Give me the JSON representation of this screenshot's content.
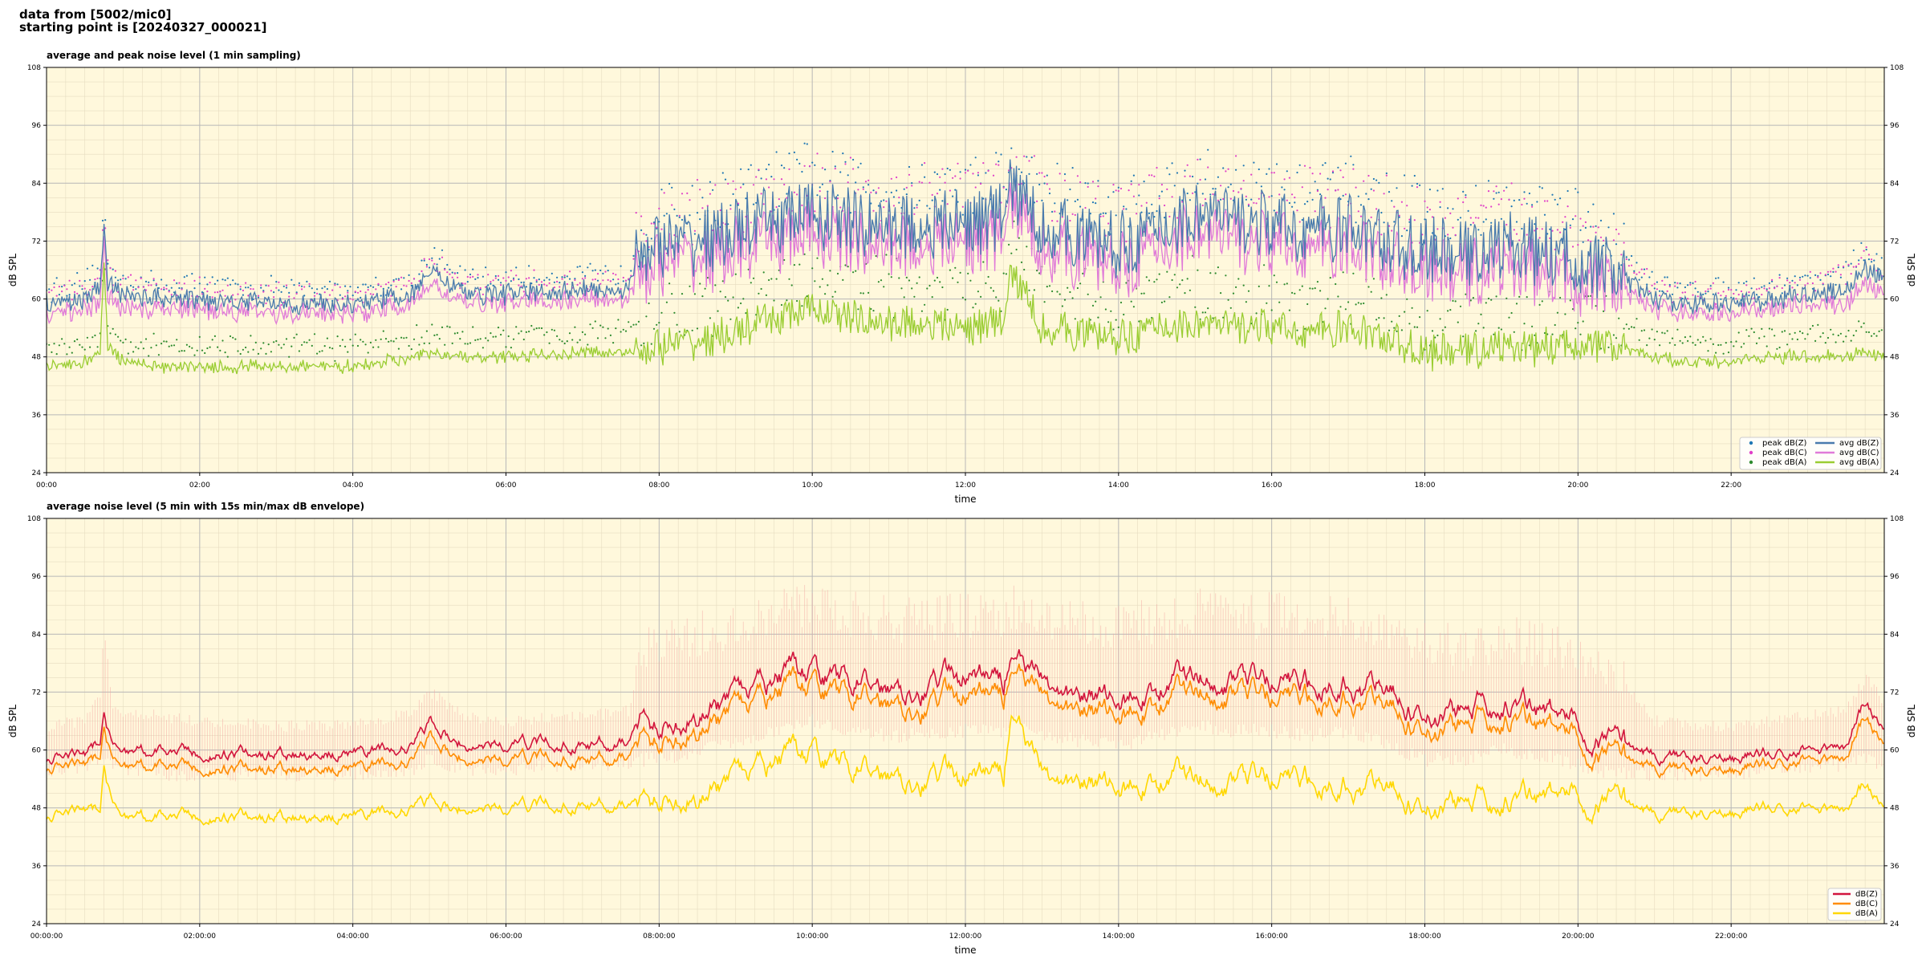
{
  "header": {
    "line1": "data from [5002/mic0]",
    "line2": "starting point is [20240327_000021]"
  },
  "colors": {
    "plot_bg": "#fff8dc",
    "peak_z": "#1f77b4",
    "peak_c": "#e040c8",
    "peak_a": "#2e8b2e",
    "avg_z": "#4a7bad",
    "avg_c": "#e07ad8",
    "avg_a": "#9acd32",
    "dbz": "#d2143c",
    "dbc": "#ff8c00",
    "dba": "#ffd700",
    "envelope": "#f4a3a0"
  },
  "chart_data": [
    {
      "type": "line",
      "title": "average and peak noise level (1 min sampling)",
      "xlabel": "time",
      "ylabel": "dB SPL",
      "ylim": [
        24,
        108
      ],
      "yticks": [
        "24",
        "36",
        "48",
        "60",
        "72",
        "84",
        "96",
        "108"
      ],
      "xlim": [
        0,
        24
      ],
      "xticks": [
        "00:00",
        "02:00",
        "04:00",
        "06:00",
        "08:00",
        "10:00",
        "12:00",
        "14:00",
        "16:00",
        "18:00",
        "20:00",
        "22:00"
      ],
      "grid": true,
      "legend_position": "lower-right",
      "legend": [
        "peak dB(Z)",
        "peak dB(C)",
        "peak dB(A)",
        "avg dB(Z)",
        "avg dB(C)",
        "avg dB(A)"
      ],
      "x_hours": [
        0,
        0.5,
        0.7,
        0.75,
        0.8,
        1,
        1.5,
        2,
        3,
        4,
        4.8,
        5,
        5.5,
        6,
        7,
        7.6,
        7.75,
        8,
        8.5,
        9,
        9.5,
        10,
        10.5,
        11,
        11.5,
        12,
        12.5,
        12.6,
        13,
        13.5,
        14,
        14.5,
        15,
        15.5,
        16,
        16.5,
        17,
        17.5,
        18,
        18.5,
        19,
        19.5,
        20,
        20.5,
        21,
        21.5,
        22,
        22.5,
        23,
        23.5,
        23.75,
        24
      ],
      "series": [
        {
          "name": "avg dB(Z)",
          "kind": "line",
          "values": [
            59,
            60,
            62,
            76,
            63,
            61,
            60,
            60,
            59,
            59,
            61,
            66,
            61,
            61,
            62,
            62,
            70,
            71,
            72,
            74,
            76,
            78,
            76,
            75,
            75,
            76,
            77,
            84,
            75,
            73,
            71,
            74,
            78,
            76,
            75,
            74,
            75,
            72,
            70,
            69,
            71,
            70,
            68,
            65,
            60,
            59,
            59,
            60,
            61,
            62,
            66,
            64
          ]
        },
        {
          "name": "avg dB(C)",
          "kind": "line",
          "values": [
            57,
            58,
            59,
            73,
            60,
            58,
            58,
            58,
            57,
            57,
            59,
            63,
            59,
            59,
            60,
            60,
            66,
            67,
            68,
            70,
            72,
            74,
            72,
            71,
            71,
            72,
            73,
            80,
            71,
            69,
            67,
            70,
            74,
            72,
            71,
            70,
            71,
            68,
            66,
            65,
            67,
            66,
            64,
            62,
            58,
            57,
            57,
            58,
            59,
            59,
            63,
            61
          ]
        },
        {
          "name": "avg dB(A)",
          "kind": "line",
          "values": [
            46,
            47,
            49,
            68,
            50,
            47,
            46,
            46,
            46,
            46,
            48,
            49,
            48,
            48,
            49,
            49,
            49,
            50,
            51,
            53,
            56,
            58,
            56,
            55,
            55,
            54,
            55,
            66,
            54,
            53,
            52,
            54,
            55,
            54,
            54,
            53,
            54,
            52,
            49,
            49,
            50,
            50,
            51,
            50,
            48,
            47,
            47,
            48,
            48,
            48,
            49,
            48
          ]
        },
        {
          "name": "peak dB(Z)",
          "kind": "scatter",
          "values": [
            62,
            63,
            66,
            80,
            67,
            64,
            63,
            63,
            62,
            62,
            64,
            69,
            64,
            64,
            65,
            65,
            75,
            77,
            79,
            81,
            84,
            86,
            84,
            83,
            83,
            84,
            85,
            88,
            83,
            81,
            79,
            82,
            85,
            84,
            83,
            82,
            83,
            80,
            78,
            77,
            79,
            78,
            76,
            72,
            63,
            62,
            62,
            63,
            64,
            66,
            70,
            67
          ]
        },
        {
          "name": "peak dB(C)",
          "kind": "scatter",
          "values": [
            61,
            62,
            65,
            79,
            66,
            63,
            62,
            62,
            61,
            61,
            63,
            68,
            63,
            63,
            64,
            64,
            74,
            76,
            78,
            80,
            83,
            85,
            83,
            82,
            82,
            83,
            84,
            87,
            82,
            80,
            78,
            81,
            84,
            83,
            82,
            81,
            82,
            79,
            77,
            76,
            78,
            77,
            75,
            71,
            62,
            61,
            61,
            62,
            63,
            65,
            69,
            66
          ]
        },
        {
          "name": "peak dB(A)",
          "kind": "scatter",
          "values": [
            50,
            51,
            53,
            72,
            54,
            51,
            50,
            50,
            50,
            50,
            52,
            53,
            52,
            52,
            53,
            53,
            54,
            56,
            58,
            60,
            63,
            65,
            63,
            62,
            62,
            61,
            62,
            72,
            61,
            60,
            59,
            61,
            62,
            61,
            61,
            60,
            61,
            59,
            55,
            55,
            56,
            56,
            57,
            55,
            52,
            51,
            51,
            52,
            52,
            53,
            54,
            52
          ]
        }
      ]
    },
    {
      "type": "line",
      "title": "average noise level (5 min with 15s min/max dB envelope)",
      "xlabel": "time",
      "ylabel": "dB SPL",
      "ylim": [
        24,
        108
      ],
      "yticks": [
        "24",
        "36",
        "48",
        "60",
        "72",
        "84",
        "96",
        "108"
      ],
      "xlim": [
        0,
        24
      ],
      "xticks": [
        "00:00:00",
        "02:00:00",
        "04:00:00",
        "06:00:00",
        "08:00:00",
        "10:00:00",
        "12:00:00",
        "14:00:00",
        "16:00:00",
        "18:00:00",
        "20:00:00",
        "22:00:00"
      ],
      "grid": true,
      "legend_position": "lower-right",
      "legend": [
        "dB(Z)",
        "dB(C)",
        "dB(A)"
      ],
      "x_hours": [
        0,
        0.5,
        0.7,
        0.75,
        0.85,
        1,
        1.5,
        2,
        3,
        4,
        4.8,
        5,
        5.5,
        6,
        7,
        7.6,
        7.75,
        8,
        8.5,
        9,
        9.5,
        10,
        10.5,
        11,
        11.5,
        12,
        12.5,
        12.6,
        13,
        13.5,
        14,
        14.5,
        15,
        15.5,
        16,
        16.5,
        17,
        17.5,
        18,
        18.5,
        19,
        19.5,
        20,
        20.5,
        21,
        21.5,
        22,
        22.5,
        23,
        23.5,
        23.75,
        24
      ],
      "series": [
        {
          "name": "dB(Z)",
          "kind": "line",
          "values": [
            58,
            58.5,
            62,
            68,
            61,
            60,
            59.5,
            59,
            59,
            59,
            61,
            65,
            61,
            61,
            61.5,
            62,
            66,
            65,
            68,
            70,
            74,
            76,
            74,
            73,
            74,
            75,
            74,
            80,
            73,
            71,
            70,
            73,
            76,
            75,
            74,
            73,
            75,
            72,
            67,
            68,
            70,
            68,
            66,
            62,
            59,
            58.5,
            58.5,
            59,
            60,
            61,
            70,
            64
          ]
        },
        {
          "name": "dB(C)",
          "kind": "line",
          "values": [
            56,
            56.5,
            59,
            65,
            58,
            57,
            56.5,
            56,
            56,
            56,
            58,
            62,
            58,
            58,
            58.5,
            59,
            62,
            62,
            65,
            67,
            71,
            73,
            71,
            70,
            70,
            71,
            71,
            77,
            70,
            68,
            67,
            70,
            73,
            72,
            71,
            70,
            72,
            69,
            64,
            65,
            67,
            65,
            63,
            59,
            56.5,
            56,
            56,
            57,
            58,
            58.5,
            67,
            61
          ]
        },
        {
          "name": "dB(A)",
          "kind": "line",
          "values": [
            46,
            47,
            48,
            57,
            49,
            46.5,
            46,
            46,
            46,
            46,
            48,
            49,
            48,
            48,
            49,
            49,
            49,
            50,
            51,
            53,
            57,
            59,
            56,
            55,
            55,
            54,
            55,
            68,
            54,
            53,
            52,
            54,
            55,
            54,
            54,
            53,
            54,
            52,
            48,
            49,
            50,
            50,
            51,
            50,
            47,
            47,
            47,
            48,
            48,
            48,
            53,
            48
          ]
        },
        {
          "name": "envelope max",
          "kind": "band",
          "values": [
            65,
            66,
            72,
            86,
            70,
            68,
            67,
            66,
            65,
            65,
            68,
            72,
            67,
            66,
            67,
            68,
            80,
            82,
            84,
            86,
            89,
            90,
            88,
            87,
            87,
            88,
            88,
            90,
            87,
            86,
            85,
            87,
            89,
            88,
            88,
            87,
            88,
            85,
            82,
            81,
            83,
            82,
            80,
            76,
            66,
            65,
            65,
            66,
            67,
            68,
            75,
            70
          ]
        },
        {
          "name": "envelope min",
          "kind": "band",
          "values": [
            56,
            56,
            58,
            60,
            57,
            56,
            55,
            55,
            55,
            55,
            56,
            58,
            56,
            56,
            57,
            57,
            58,
            58,
            60,
            62,
            64,
            66,
            64,
            63,
            63,
            64,
            64,
            66,
            63,
            62,
            61,
            63,
            65,
            64,
            64,
            63,
            64,
            61,
            58,
            58,
            60,
            59,
            57,
            55,
            55,
            55,
            55,
            56,
            56,
            57,
            58,
            57
          ]
        }
      ]
    }
  ]
}
